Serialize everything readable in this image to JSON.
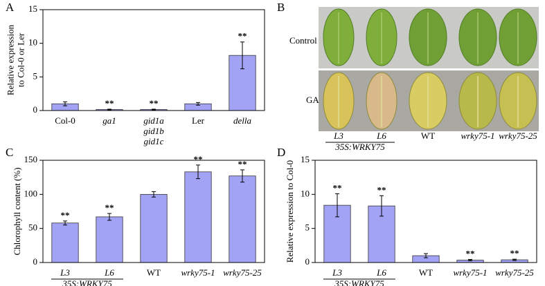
{
  "chart_data": [
    {
      "type": "bar",
      "panel": "A",
      "y_label": "Relative expression\nto Col-0 or Ler",
      "categories": [
        "Col-0",
        "ga1",
        "gid1a\ngid1b\ngid1c",
        "Ler",
        "della"
      ],
      "italic_categories": [
        false,
        true,
        true,
        false,
        true
      ],
      "values": [
        1.0,
        0.15,
        0.15,
        1.0,
        8.2
      ],
      "errors": [
        0.3,
        0.05,
        0.05,
        0.2,
        2.0
      ],
      "annotations": [
        null,
        "**",
        "**",
        null,
        "**"
      ],
      "color": "#a3a3f5",
      "ylim": [
        0,
        15
      ],
      "yticks": [
        0,
        5,
        10,
        15
      ]
    },
    {
      "type": "bar",
      "panel": "C",
      "y_label": "Chlorophyll content (%)",
      "categories": [
        "L3",
        "L6",
        "WT",
        "wrky75-1",
        "wrky75-25"
      ],
      "italic_categories": [
        true,
        true,
        false,
        true,
        true
      ],
      "groups": [
        {
          "label": "35S:WRKY75",
          "categories": [
            0,
            1
          ]
        }
      ],
      "values": [
        58,
        67,
        100,
        133,
        127
      ],
      "errors": [
        3,
        5,
        4,
        10,
        9
      ],
      "annotations": [
        "**",
        "**",
        null,
        "**",
        "**"
      ],
      "color": "#a3a3f5",
      "ylim": [
        0,
        150
      ],
      "yticks": [
        0,
        50,
        100,
        150
      ]
    },
    {
      "type": "bar",
      "panel": "D",
      "y_label": "Relative expression to Col-0",
      "categories": [
        "L3",
        "L6",
        "WT",
        "wrky75-1",
        "wrky75-25"
      ],
      "italic_categories": [
        true,
        true,
        false,
        true,
        true
      ],
      "groups": [
        {
          "label": "35S:WRKY75",
          "categories": [
            0,
            1
          ]
        }
      ],
      "values": [
        8.4,
        8.3,
        1.0,
        0.35,
        0.4
      ],
      "errors": [
        1.7,
        1.5,
        0.3,
        0.1,
        0.1
      ],
      "annotations": [
        "**",
        "**",
        null,
        "**",
        "**"
      ],
      "color": "#a3a3f5",
      "ylim": [
        0,
        15
      ],
      "yticks": [
        0,
        5,
        10,
        15
      ]
    }
  ],
  "photo_panel": {
    "panel": "B",
    "rows": [
      "Control",
      "GA"
    ],
    "columns": [
      "L3",
      "L6",
      "WT",
      "wrky75-1",
      "wrky75-25"
    ],
    "italic_columns": [
      true,
      true,
      false,
      true,
      true
    ],
    "group": "35S:WRKY75"
  }
}
